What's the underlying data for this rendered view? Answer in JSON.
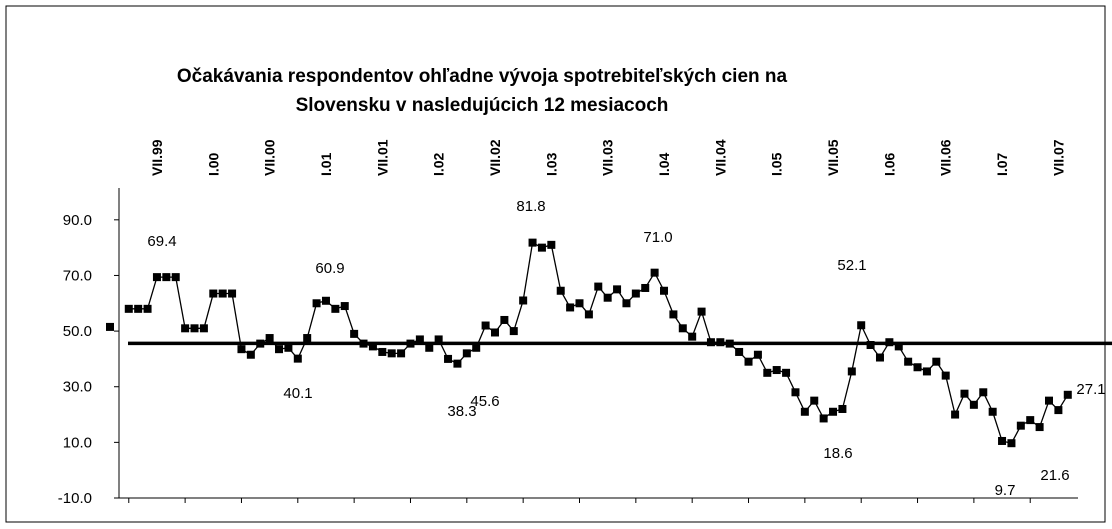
{
  "chart_data": {
    "type": "line",
    "title": "Očakávania respondentov ohľadne vývoja spotrebiteľských cien na Slovensku v nasledujúcich 12 mesiacoch",
    "categories": [
      null,
      null,
      null,
      null,
      null,
      "VII.99",
      null,
      null,
      null,
      null,
      null,
      "I.00",
      null,
      null,
      null,
      null,
      null,
      "VII.00",
      null,
      null,
      null,
      null,
      null,
      "I.01",
      null,
      null,
      null,
      null,
      null,
      "VII.01",
      null,
      null,
      null,
      null,
      null,
      "I.02",
      null,
      null,
      null,
      null,
      null,
      "VII.02",
      null,
      null,
      null,
      null,
      null,
      "I.03",
      null,
      null,
      null,
      null,
      null,
      "VII.03",
      null,
      null,
      null,
      null,
      null,
      "I.04",
      null,
      null,
      null,
      null,
      null,
      "VII.04",
      null,
      null,
      null,
      null,
      null,
      "I.05",
      null,
      null,
      null,
      null,
      null,
      "VII.05",
      null,
      null,
      null,
      null,
      null,
      "I.06",
      null,
      null,
      null,
      null,
      null,
      "VII.06",
      null,
      null,
      null,
      null,
      null,
      "I.07",
      null,
      null,
      null,
      null,
      null,
      "VII.07",
      null
    ],
    "series": [
      {
        "color": "#000000",
        "values": [
          51.5,
          null,
          58,
          58,
          58,
          69.4,
          69.4,
          69.4,
          51,
          51,
          51,
          63.5,
          63.5,
          63.5,
          43.5,
          41.5,
          45.5,
          47.5,
          43.5,
          44,
          40.1,
          47.5,
          60,
          60.9,
          58,
          59,
          49,
          45.5,
          44.5,
          42.5,
          42,
          42,
          45.5,
          47,
          44,
          47,
          40,
          38.3,
          42,
          44,
          52,
          49.5,
          54,
          50,
          61,
          81.8,
          80,
          81,
          64.5,
          58.5,
          60,
          56,
          66,
          62,
          65,
          60,
          63.5,
          65.5,
          71.0,
          64.5,
          56,
          51,
          48,
          57,
          46,
          46,
          45.5,
          42.5,
          39,
          41.5,
          35,
          36,
          35,
          28,
          21,
          25,
          18.6,
          21,
          22,
          35.5,
          52.1,
          45,
          40.5,
          46,
          44.5,
          39,
          37,
          35.5,
          39,
          34,
          20,
          27.5,
          23.5,
          28,
          21,
          10.5,
          9.7,
          16,
          18,
          15.5,
          25,
          21.6,
          27.1
        ]
      }
    ],
    "reference_line": 45.6,
    "annotations": [
      "69.4",
      "60.9",
      "40.1",
      "38.3",
      "81.8",
      "71.0",
      "52.1",
      "18.6",
      "9.7",
      "21.6",
      "27.1"
    ],
    "ylim": [
      -10,
      100
    ],
    "yticks": [
      {
        "value": -10,
        "label": "-10.0"
      },
      {
        "value": 10,
        "label": "10.0"
      },
      {
        "value": 30,
        "label": "30.0"
      },
      {
        "value": 50,
        "label": "50.0"
      },
      {
        "value": 70,
        "label": "70.0"
      },
      {
        "value": 90,
        "label": "90.0"
      }
    ]
  }
}
